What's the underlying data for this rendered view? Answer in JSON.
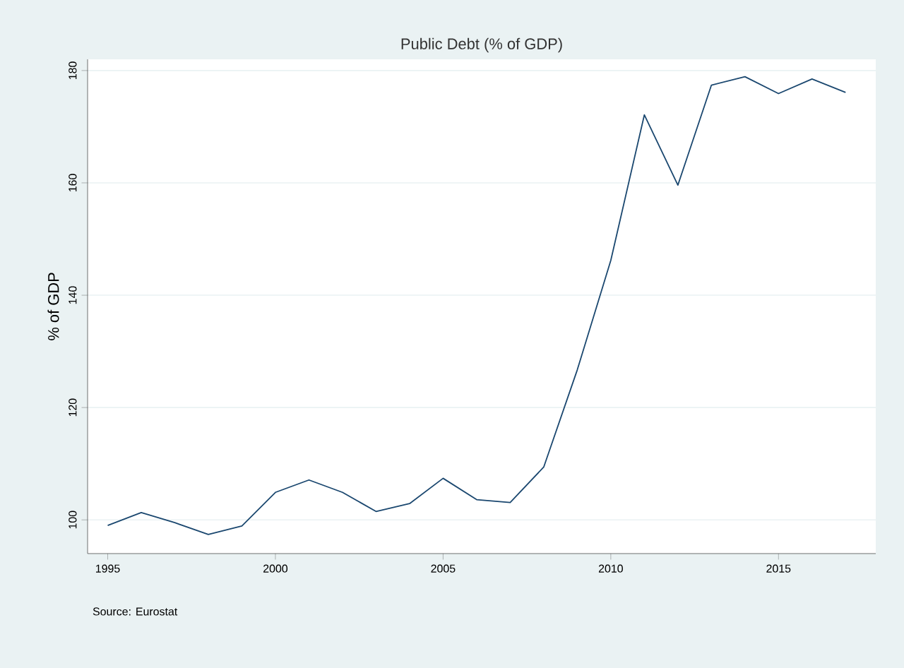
{
  "chart_data": {
    "type": "line",
    "title": "Public Debt (% of GDP)",
    "ylabel": "% of GDP",
    "annotations": [
      "Source: Eurostat"
    ],
    "x": [
      1995,
      1996,
      1997,
      1998,
      1999,
      2000,
      2001,
      2002,
      2003,
      2004,
      2005,
      2006,
      2007,
      2008,
      2009,
      2010,
      2011,
      2012,
      2013,
      2014,
      2015,
      2016,
      2017
    ],
    "series": [
      {
        "color": "#1a476f",
        "values": [
          99.0,
          101.3,
          99.5,
          97.4,
          98.9,
          104.9,
          107.1,
          104.9,
          101.5,
          102.9,
          107.4,
          103.6,
          103.1,
          109.4,
          126.7,
          146.2,
          172.1,
          159.6,
          177.4,
          178.9,
          175.9,
          178.5,
          176.1
        ]
      }
    ],
    "xlim": [
      1994.4,
      2017.9
    ],
    "ylim": [
      94,
      182
    ],
    "xticks": [
      1995,
      2000,
      2005,
      2010,
      2015
    ],
    "yticks": [
      100,
      120,
      140,
      160,
      180
    ],
    "grid": "y",
    "marker": "none",
    "line_style": "solid"
  }
}
